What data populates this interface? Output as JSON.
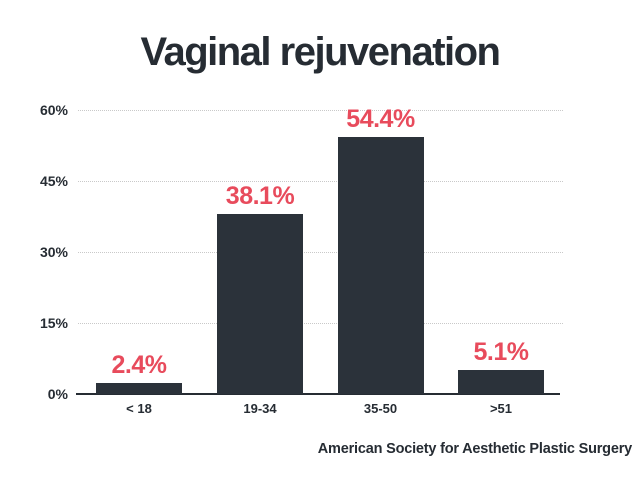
{
  "chart": {
    "title": "Vaginal rejuvenation",
    "source": "American Society for Aesthetic Plastic Surgery",
    "colors": {
      "bar": "#2b323a",
      "accent_red": "#e84b5c",
      "text_dark": "#262c33",
      "gridline": "#c9c9c9",
      "background": "#ffffff"
    }
  },
  "chart_data": {
    "type": "bar",
    "title": "Vaginal rejuvenation",
    "categories": [
      "< 18",
      "19-34",
      "35-50",
      ">51"
    ],
    "values": [
      2.4,
      38.1,
      54.4,
      5.1
    ],
    "value_labels": [
      "2.4%",
      "38.1%",
      "54.4%",
      "5.1%"
    ],
    "xlabel": "",
    "ylabel": "",
    "ylim": [
      0,
      60
    ],
    "y_ticks": [
      0,
      15,
      30,
      45,
      60
    ],
    "y_tick_labels": [
      "0%",
      "15%",
      "30%",
      "45%",
      "60%"
    ],
    "grid": "horizontal dotted, no gridline at 0",
    "legend": "none",
    "value_label_position": "above bars, red bold",
    "source": "American Society for Aesthetic Plastic Surgery"
  }
}
